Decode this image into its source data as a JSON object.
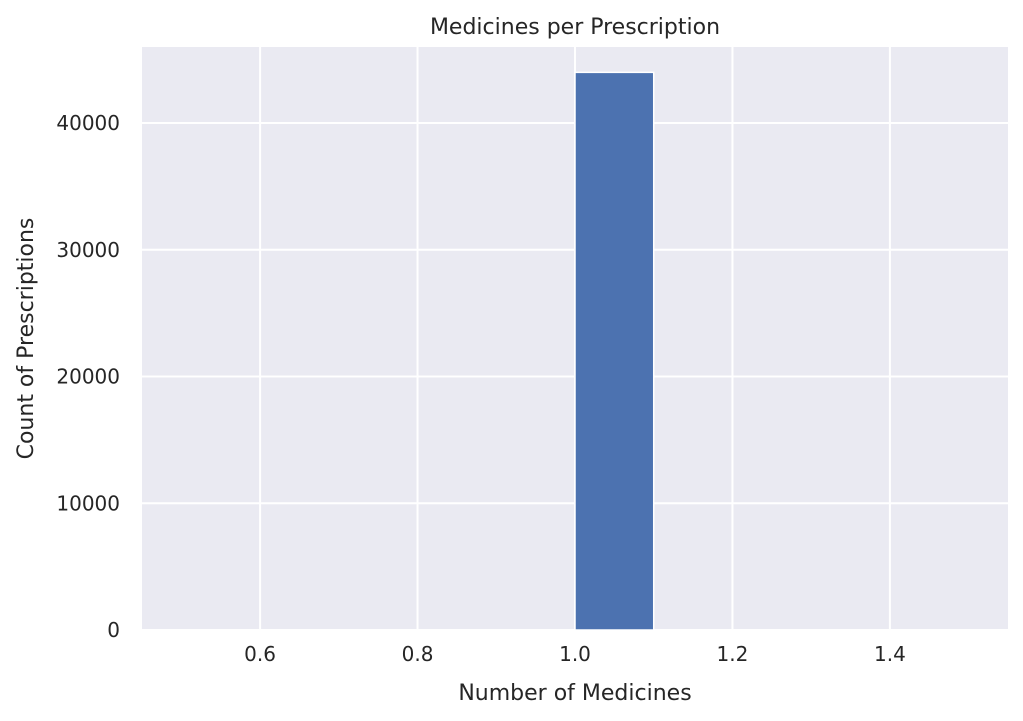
{
  "chart_data": {
    "type": "bar",
    "title": "Medicines per Prescription",
    "xlabel": "Number of Medicines",
    "ylabel": "Count of Prescriptions",
    "xlim": [
      0.45,
      1.55
    ],
    "ylim": [
      0,
      46000
    ],
    "xticks": [
      0.6,
      0.8,
      1.0,
      1.2,
      1.4
    ],
    "xtick_labels": [
      "0.6",
      "0.8",
      "1.0",
      "1.2",
      "1.4"
    ],
    "yticks": [
      0,
      10000,
      20000,
      30000,
      40000
    ],
    "ytick_labels": [
      "0",
      "10000",
      "20000",
      "30000",
      "40000"
    ],
    "bars": [
      {
        "x_start": 1.0,
        "x_end": 1.1,
        "value": 44000
      }
    ],
    "grid": true,
    "colors": {
      "background": "#eaeaf2",
      "grid": "#ffffff",
      "bar": "#4c72b0",
      "text": "#262626"
    }
  }
}
